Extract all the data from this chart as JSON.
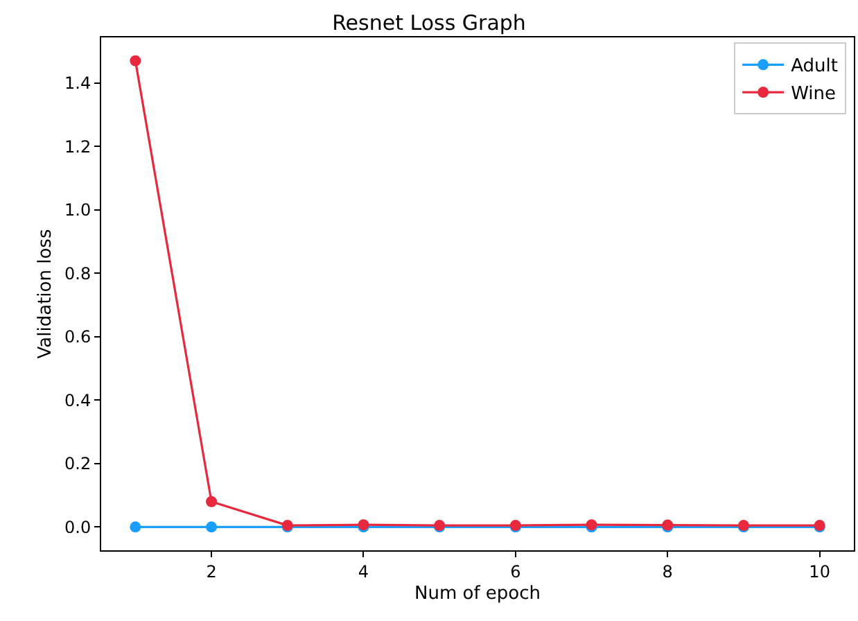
{
  "chart_data": {
    "type": "line",
    "title": "Resnet Loss Graph",
    "xlabel": "Num of epoch",
    "ylabel": "Validation loss",
    "x": [
      1,
      2,
      3,
      4,
      5,
      6,
      7,
      8,
      9,
      10
    ],
    "series": [
      {
        "name": "Adult",
        "color": "#1a9fff",
        "values": [
          0,
          0,
          0,
          0,
          0,
          0,
          0,
          0,
          0,
          0
        ]
      },
      {
        "name": "Wine",
        "color": "#e8283c",
        "values": [
          1.47,
          0.08,
          0.005,
          0.007,
          0.005,
          0.005,
          0.007,
          0.006,
          0.005,
          0.005
        ]
      }
    ],
    "xlim": [
      0.55,
      10.45
    ],
    "ylim": [
      -0.0735,
      1.5435
    ],
    "xticks": [
      2,
      4,
      6,
      8,
      10
    ],
    "yticks": [
      {
        "value": 0,
        "label": "0.0"
      },
      0.2,
      0.4,
      0.6,
      0.8,
      {
        "value": 1,
        "label": "1.0"
      },
      1.2,
      1.4
    ],
    "grid": false,
    "legend": "top right",
    "marker": "circle",
    "line_style": "solid"
  }
}
